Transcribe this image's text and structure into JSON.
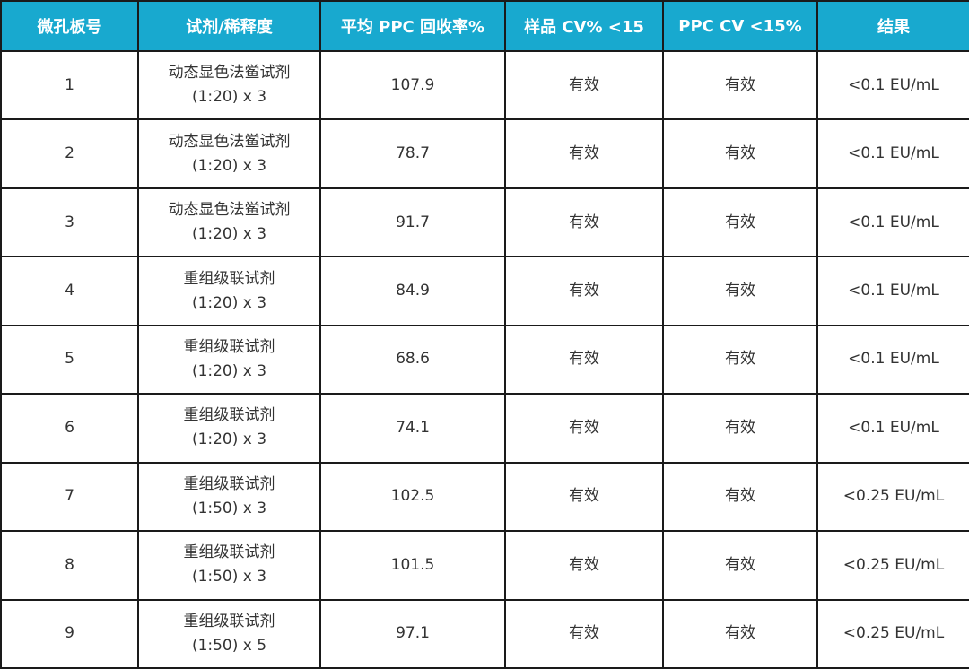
{
  "table": {
    "headers": [
      "微孔板号",
      "试剂/稀释度",
      "平均 PPC 回收率%",
      "样品 CV% <15",
      "PPC CV <15%",
      "结果"
    ],
    "rows": [
      {
        "plate": "1",
        "reagent": "动态显色法鲎试剂",
        "dilution": "(1:20) x 3",
        "ppc_recovery": "107.9",
        "sample_cv": "有效",
        "ppc_cv": "有效",
        "result": "<0.1 EU/mL"
      },
      {
        "plate": "2",
        "reagent": "动态显色法鲎试剂",
        "dilution": "(1:20) x 3",
        "ppc_recovery": "78.7",
        "sample_cv": "有效",
        "ppc_cv": "有效",
        "result": "<0.1 EU/mL"
      },
      {
        "plate": "3",
        "reagent": "动态显色法鲎试剂",
        "dilution": "(1:20) x 3",
        "ppc_recovery": "91.7",
        "sample_cv": "有效",
        "ppc_cv": "有效",
        "result": "<0.1 EU/mL"
      },
      {
        "plate": "4",
        "reagent": "重组级联试剂",
        "dilution": "(1:20) x 3",
        "ppc_recovery": "84.9",
        "sample_cv": "有效",
        "ppc_cv": "有效",
        "result": "<0.1 EU/mL"
      },
      {
        "plate": "5",
        "reagent": "重组级联试剂",
        "dilution": "(1:20) x 3",
        "ppc_recovery": "68.6",
        "sample_cv": "有效",
        "ppc_cv": "有效",
        "result": "<0.1 EU/mL"
      },
      {
        "plate": "6",
        "reagent": "重组级联试剂",
        "dilution": "(1:20) x 3",
        "ppc_recovery": "74.1",
        "sample_cv": "有效",
        "ppc_cv": "有效",
        "result": "<0.1 EU/mL"
      },
      {
        "plate": "7",
        "reagent": "重组级联试剂",
        "dilution": "(1:50) x 3",
        "ppc_recovery": "102.5",
        "sample_cv": "有效",
        "ppc_cv": "有效",
        "result": "<0.25 EU/mL"
      },
      {
        "plate": "8",
        "reagent": "重组级联试剂",
        "dilution": "(1:50) x 3",
        "ppc_recovery": "101.5",
        "sample_cv": "有效",
        "ppc_cv": "有效",
        "result": "<0.25 EU/mL"
      },
      {
        "plate": "9",
        "reagent": "重组级联试剂",
        "dilution": "(1:50) x 5",
        "ppc_recovery": "97.1",
        "sample_cv": "有效",
        "ppc_cv": "有效",
        "result": "<0.25 EU/mL"
      }
    ]
  }
}
